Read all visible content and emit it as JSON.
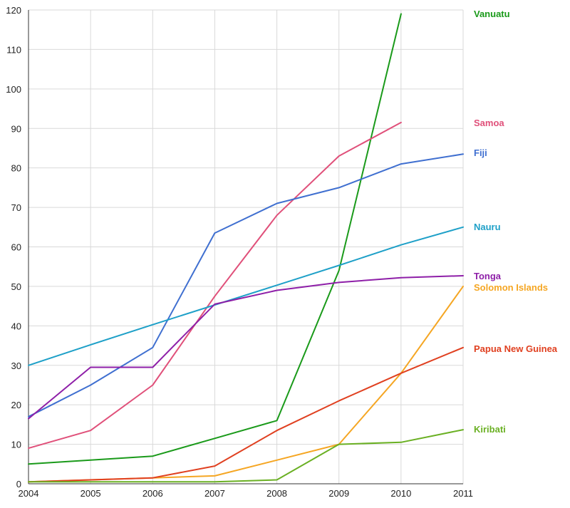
{
  "chart_data": {
    "type": "line",
    "title": "",
    "xlabel": "",
    "ylabel": "",
    "x": [
      2004,
      2005,
      2006,
      2007,
      2008,
      2009,
      2010,
      2011
    ],
    "x_tick_labels": [
      "2004",
      "2005",
      "2006",
      "2007",
      "2008",
      "2009",
      "2010",
      "2011"
    ],
    "ylim": [
      0,
      120
    ],
    "y_ticks": [
      0,
      10,
      20,
      30,
      40,
      50,
      60,
      70,
      80,
      90,
      100,
      110,
      120
    ],
    "grid": true,
    "legend": "inline labels at right of lines",
    "series": [
      {
        "name": "Vanuatu",
        "color": "#1a9a1a",
        "values": [
          5,
          6,
          7,
          11.5,
          16,
          54,
          119,
          null
        ]
      },
      {
        "name": "Samoa",
        "color": "#e0507a",
        "values": [
          9,
          13.5,
          25,
          47.5,
          68,
          83,
          91.5,
          null
        ]
      },
      {
        "name": "Fiji",
        "color": "#3f6fd0",
        "values": [
          17,
          25,
          34.5,
          63.5,
          71,
          75,
          81,
          83.5
        ]
      },
      {
        "name": "Nauru",
        "color": "#1ea0c8",
        "values": [
          30,
          35.2,
          40.3,
          45.3,
          50.3,
          55.3,
          60.5,
          65
        ]
      },
      {
        "name": "Tonga",
        "color": "#8e1fa8",
        "values": [
          16.5,
          29.5,
          29.5,
          45.5,
          49,
          51,
          52.2,
          52.7
        ]
      },
      {
        "name": "Solomon Islands",
        "color": "#f5a623",
        "values": [
          0.5,
          1,
          1.5,
          2,
          6,
          10,
          28,
          50
        ]
      },
      {
        "name": "Papua New Guinea",
        "color": "#e04020",
        "values": [
          0.5,
          1,
          1.5,
          4.5,
          13.5,
          21,
          28,
          34.5
        ]
      },
      {
        "name": "Kiribati",
        "color": "#6ab023",
        "values": [
          0.5,
          0.5,
          0.5,
          0.5,
          1,
          10,
          10.5,
          13.7
        ]
      }
    ]
  }
}
